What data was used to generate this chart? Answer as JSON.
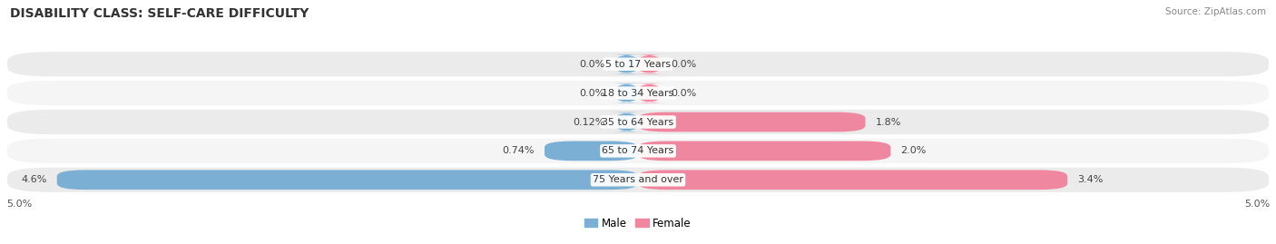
{
  "title": "DISABILITY CLASS: SELF-CARE DIFFICULTY",
  "source": "Source: ZipAtlas.com",
  "categories": [
    "5 to 17 Years",
    "18 to 34 Years",
    "35 to 64 Years",
    "65 to 74 Years",
    "75 Years and over"
  ],
  "male_values": [
    0.0,
    0.0,
    0.12,
    0.74,
    4.6
  ],
  "female_values": [
    0.0,
    0.0,
    1.8,
    2.0,
    3.4
  ],
  "male_labels": [
    "0.0%",
    "0.0%",
    "0.12%",
    "0.74%",
    "4.6%"
  ],
  "female_labels": [
    "0.0%",
    "0.0%",
    "1.8%",
    "2.0%",
    "3.4%"
  ],
  "male_color": "#7bafd4",
  "female_color": "#f087a0",
  "row_bg_colors": [
    "#ebebeb",
    "#f5f5f5",
    "#ebebeb",
    "#f5f5f5",
    "#ebebeb"
  ],
  "max_value": 5.0,
  "axis_label": "5.0%",
  "title_fontsize": 10,
  "label_fontsize": 8,
  "category_fontsize": 8,
  "legend_fontsize": 8.5,
  "min_bar_display": 0.18
}
